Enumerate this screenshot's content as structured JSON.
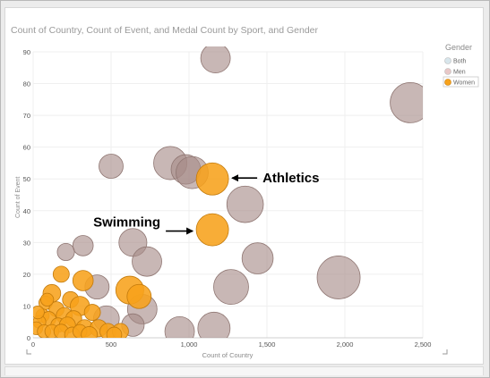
{
  "chart_data": {
    "type": "scatter",
    "title": "Count of Country, Count of Event, and Medal Count by Sport, and Gender",
    "xlabel": "Count of Country",
    "ylabel": "Count of Event",
    "xlim": [
      0,
      2500
    ],
    "ylim": [
      0,
      90
    ],
    "x_ticks": [
      {
        "value": 0,
        "label": "0"
      },
      {
        "value": 500,
        "label": "500"
      },
      {
        "value": 1000,
        "label": "1,000"
      },
      {
        "value": 1500,
        "label": "1,500"
      },
      {
        "value": 2000,
        "label": "2,000"
      },
      {
        "value": 2500,
        "label": "2,500"
      }
    ],
    "y_ticks": [
      {
        "value": 0,
        "label": "0"
      },
      {
        "value": 10,
        "label": "10"
      },
      {
        "value": 20,
        "label": "20"
      },
      {
        "value": 30,
        "label": "30"
      },
      {
        "value": 40,
        "label": "40"
      },
      {
        "value": 50,
        "label": "50"
      },
      {
        "value": 60,
        "label": "60"
      },
      {
        "value": 70,
        "label": "70"
      },
      {
        "value": 80,
        "label": "80"
      },
      {
        "value": 90,
        "label": "90"
      }
    ],
    "grid": true,
    "legend": {
      "title": "Gender",
      "placement": "top-right",
      "items": [
        {
          "label": "Both",
          "color": "#d8e6ec",
          "selected": false
        },
        {
          "label": "Men",
          "color": "#e8c8c8",
          "selected": false
        },
        {
          "label": "Women",
          "color": "#f7a21b",
          "selected": true
        }
      ]
    },
    "series": [
      {
        "name": "Men",
        "color": "#a68b88",
        "points": [
          {
            "x": 1170,
            "y": 88,
            "size": 0.55
          },
          {
            "x": 2420,
            "y": 74,
            "size": 0.75
          },
          {
            "x": 500,
            "y": 54,
            "size": 0.45
          },
          {
            "x": 880,
            "y": 55,
            "size": 0.62
          },
          {
            "x": 980,
            "y": 53,
            "size": 0.55
          },
          {
            "x": 1020,
            "y": 52,
            "size": 0.6
          },
          {
            "x": 1360,
            "y": 42,
            "size": 0.68
          },
          {
            "x": 640,
            "y": 30,
            "size": 0.52
          },
          {
            "x": 1440,
            "y": 25,
            "size": 0.58
          },
          {
            "x": 730,
            "y": 24,
            "size": 0.55
          },
          {
            "x": 1270,
            "y": 16,
            "size": 0.65
          },
          {
            "x": 1960,
            "y": 19,
            "size": 0.8
          },
          {
            "x": 1160,
            "y": 3,
            "size": 0.6
          },
          {
            "x": 940,
            "y": 2,
            "size": 0.55
          },
          {
            "x": 700,
            "y": 9,
            "size": 0.55
          },
          {
            "x": 320,
            "y": 29,
            "size": 0.38
          },
          {
            "x": 210,
            "y": 27,
            "size": 0.32
          },
          {
            "x": 410,
            "y": 16,
            "size": 0.45
          },
          {
            "x": 470,
            "y": 6,
            "size": 0.48
          },
          {
            "x": 640,
            "y": 4,
            "size": 0.42
          }
        ]
      },
      {
        "name": "Women",
        "color": "#f7a21b",
        "points": [
          {
            "x": 1150,
            "y": 50,
            "size": 0.6
          },
          {
            "x": 1150,
            "y": 34,
            "size": 0.6
          },
          {
            "x": 620,
            "y": 15,
            "size": 0.52
          },
          {
            "x": 680,
            "y": 13,
            "size": 0.45
          },
          {
            "x": 320,
            "y": 18,
            "size": 0.38
          },
          {
            "x": 180,
            "y": 20,
            "size": 0.3
          },
          {
            "x": 120,
            "y": 14,
            "size": 0.33
          },
          {
            "x": 240,
            "y": 12,
            "size": 0.3
          },
          {
            "x": 80,
            "y": 11,
            "size": 0.25
          },
          {
            "x": 300,
            "y": 10,
            "size": 0.36
          },
          {
            "x": 150,
            "y": 9,
            "size": 0.28
          },
          {
            "x": 380,
            "y": 8,
            "size": 0.3
          },
          {
            "x": 200,
            "y": 7,
            "size": 0.3
          },
          {
            "x": 60,
            "y": 7,
            "size": 0.25
          },
          {
            "x": 100,
            "y": 6,
            "size": 0.27
          },
          {
            "x": 260,
            "y": 6,
            "size": 0.3
          },
          {
            "x": 40,
            "y": 5,
            "size": 0.24
          },
          {
            "x": 160,
            "y": 4,
            "size": 0.27
          },
          {
            "x": 220,
            "y": 4,
            "size": 0.3
          },
          {
            "x": 330,
            "y": 3,
            "size": 0.32
          },
          {
            "x": 420,
            "y": 3,
            "size": 0.32
          },
          {
            "x": 480,
            "y": 2,
            "size": 0.3
          },
          {
            "x": 560,
            "y": 2,
            "size": 0.3
          },
          {
            "x": 20,
            "y": 3,
            "size": 0.24
          },
          {
            "x": 70,
            "y": 2,
            "size": 0.25
          },
          {
            "x": 120,
            "y": 2,
            "size": 0.26
          },
          {
            "x": 180,
            "y": 2,
            "size": 0.27
          },
          {
            "x": 250,
            "y": 1,
            "size": 0.28
          },
          {
            "x": 300,
            "y": 2,
            "size": 0.26
          },
          {
            "x": 360,
            "y": 1,
            "size": 0.3
          },
          {
            "x": 520,
            "y": 1,
            "size": 0.28
          },
          {
            "x": 30,
            "y": 8,
            "size": 0.24
          },
          {
            "x": 90,
            "y": 12,
            "size": 0.24
          }
        ]
      }
    ],
    "annotations": [
      {
        "text": "Athletics",
        "x": 1150,
        "y": 50,
        "side": "right"
      },
      {
        "text": "Swimming",
        "x": 1150,
        "y": 35,
        "side": "left"
      }
    ]
  }
}
